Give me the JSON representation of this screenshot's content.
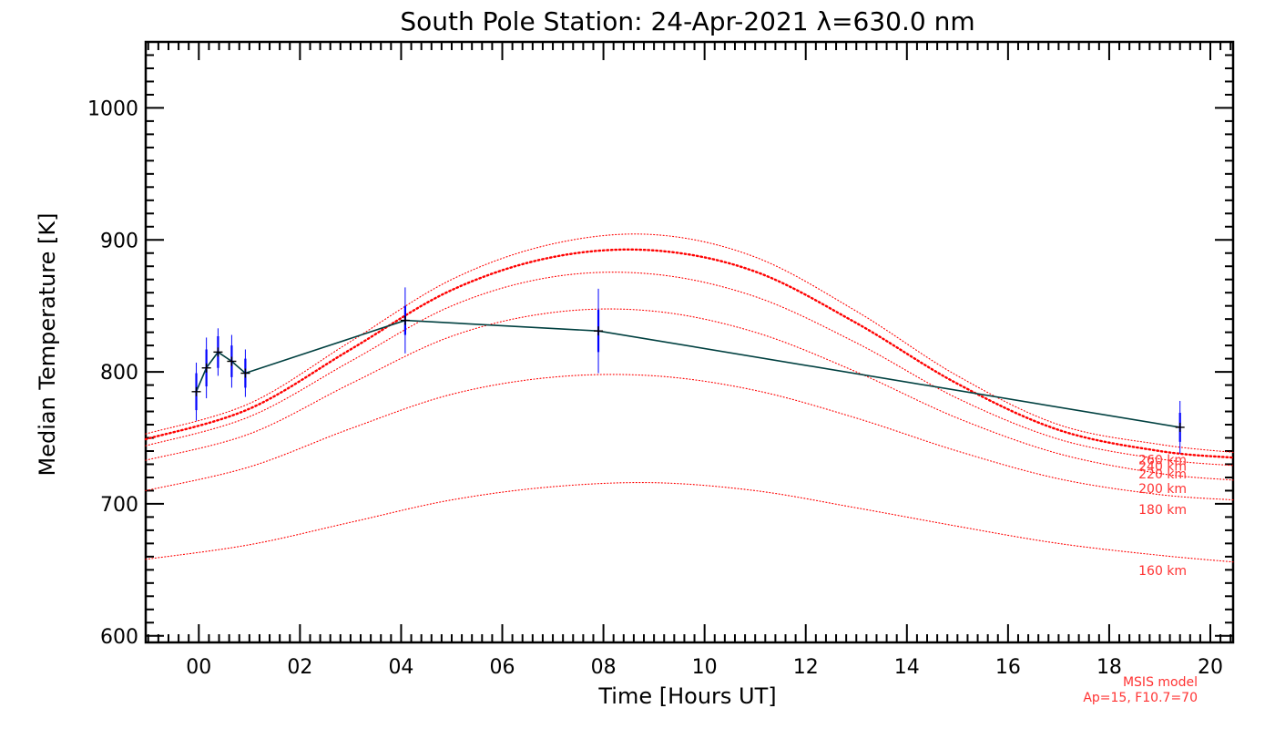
{
  "chart_data": {
    "type": "line",
    "title": "South Pole Station: 24-Apr-2021 λ=630.0 nm",
    "xlabel": "Time [Hours UT]",
    "ylabel": "Median Temperature [K]",
    "xlim": [
      -1.05,
      20.45
    ],
    "ylim": [
      595,
      1050
    ],
    "x_ticks": [
      0,
      2,
      4,
      6,
      8,
      10,
      12,
      14,
      16,
      18,
      20
    ],
    "x_tick_labels": [
      "00",
      "02",
      "04",
      "06",
      "08",
      "10",
      "12",
      "14",
      "16",
      "18",
      "20"
    ],
    "y_ticks": [
      600,
      700,
      800,
      900,
      1000
    ],
    "y_tick_labels": [
      "600",
      "700",
      "800",
      "900",
      "1000"
    ],
    "observations": {
      "name": "Median temperature",
      "color": "#004040",
      "marker_color": "#000000",
      "errorbar_color": "#0000ff",
      "x": [
        -0.05,
        0.15,
        0.38,
        0.65,
        0.92,
        4.08,
        7.9,
        19.4
      ],
      "y": [
        785,
        803,
        815,
        808,
        799,
        839,
        831,
        758
      ],
      "err_inner": [
        14,
        14,
        12,
        12,
        11,
        11,
        16,
        11
      ],
      "err_outer": [
        22,
        23,
        18,
        20,
        18,
        25,
        32,
        20
      ]
    },
    "model_series": [
      {
        "name": "160 km",
        "x": [
          -1.05,
          1,
          3,
          5,
          7,
          9,
          11,
          13,
          15,
          17,
          19,
          20.45
        ],
        "y": [
          658,
          669,
          686,
          703,
          713,
          716,
          710,
          697,
          683,
          670,
          661,
          656
        ]
      },
      {
        "name": "180 km",
        "x": [
          -1.05,
          1,
          3,
          5,
          7,
          9,
          11,
          13,
          15,
          17,
          19,
          20.45
        ],
        "y": [
          710,
          728,
          757,
          783,
          796,
          797,
          786,
          765,
          740,
          719,
          707,
          703
        ]
      },
      {
        "name": "200 km",
        "x": [
          -1.05,
          1,
          3,
          5,
          7,
          9,
          11,
          13,
          15,
          17,
          19,
          20.45
        ],
        "y": [
          733,
          753,
          791,
          827,
          845,
          846,
          830,
          800,
          765,
          738,
          723,
          718
        ]
      },
      {
        "name": "220 km",
        "x": [
          -1.05,
          1,
          3,
          5,
          7,
          9,
          11,
          13,
          15,
          17,
          19,
          20.45
        ],
        "y": [
          744,
          766,
          808,
          850,
          872,
          874,
          857,
          822,
          780,
          749,
          734,
          729
        ]
      },
      {
        "name": "240 km",
        "x": [
          -1.05,
          1,
          3,
          5,
          7,
          9,
          11,
          13,
          15,
          17,
          19,
          20.45
        ],
        "y": [
          749,
          772,
          817,
          862,
          887,
          892,
          876,
          837,
          791,
          756,
          740,
          735
        ],
        "emphasis": true
      },
      {
        "name": "260 km",
        "x": [
          -1.05,
          1,
          3,
          5,
          7,
          9,
          11,
          13,
          15,
          17,
          19,
          20.45
        ],
        "y": [
          753,
          776,
          823,
          870,
          897,
          904,
          887,
          846,
          797,
          760,
          745,
          739
        ]
      }
    ],
    "model_label_positions_hours": 19.3,
    "model_note_line1": "MSIS model",
    "model_note_line2": "Ap=15, F10.7=70",
    "colors": {
      "axes": "#000000",
      "model": "#ff0000",
      "model_text": "#ff3333"
    }
  }
}
